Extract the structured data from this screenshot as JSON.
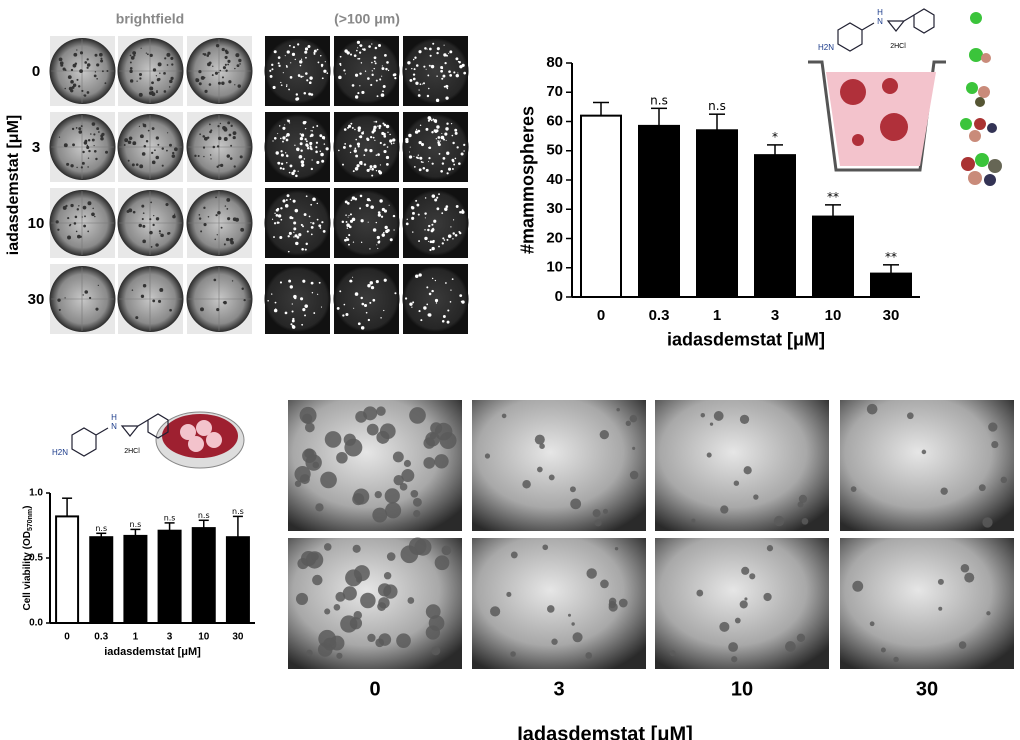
{
  "panel_a": {
    "col_labels": [
      "brightfield",
      "(>100 μm)"
    ],
    "row_axis_label": "iadasdemstat [μM]",
    "row_labels": [
      "0",
      "3",
      "10",
      "30"
    ]
  },
  "chart_data": [
    {
      "type": "bar",
      "categories": [
        "0",
        "0.3",
        "1",
        "3",
        "10",
        "30"
      ],
      "values": [
        62,
        58.5,
        57,
        48.5,
        27.5,
        8
      ],
      "errors": [
        4.5,
        6,
        5.5,
        3.5,
        4,
        3
      ],
      "annotations": [
        null,
        "n.s",
        "n.s",
        "*",
        "**",
        "**"
      ],
      "colors": [
        "#ffffff",
        "#000000",
        "#000000",
        "#000000",
        "#000000",
        "#000000"
      ],
      "ylim": [
        0,
        80
      ],
      "yticks": [
        0,
        10,
        20,
        30,
        40,
        50,
        60,
        70,
        80
      ],
      "ylabel": "#mammospheres",
      "xlabel": "iadasdemstat [μM]"
    },
    {
      "type": "bar",
      "categories": [
        "0",
        "0.3",
        "1",
        "3",
        "10",
        "30"
      ],
      "values": [
        0.82,
        0.66,
        0.67,
        0.71,
        0.73,
        0.66
      ],
      "errors": [
        0.14,
        0.03,
        0.05,
        0.06,
        0.06,
        0.16
      ],
      "annotations": [
        null,
        "n.s",
        "n.s",
        "n.s",
        "n.s",
        "n.s"
      ],
      "colors": [
        "#ffffff",
        "#000000",
        "#000000",
        "#000000",
        "#000000",
        "#000000"
      ],
      "ylim": [
        0,
        1.0
      ],
      "yticks": [
        {
          "value": 0,
          "label": "0.0"
        },
        0.5,
        {
          "value": 1.0,
          "label": "1.0"
        }
      ],
      "ylabel_parts": [
        "Cell viability (OD",
        "570nm",
        ")"
      ],
      "xlabel": "iadasdemstat [μM]"
    }
  ],
  "panel_d": {
    "col_labels": [
      "0",
      "3",
      "10",
      "30"
    ],
    "xlabel": "Iadasdemstat [μM]"
  },
  "molecule_labels": {
    "top": {
      "amine": "H2N",
      "nh": "H",
      "n": "N",
      "salt": "2HCl"
    },
    "bottom": {
      "amine": "H2N",
      "nh": "H",
      "n": "N",
      "salt": "2HCl"
    }
  }
}
